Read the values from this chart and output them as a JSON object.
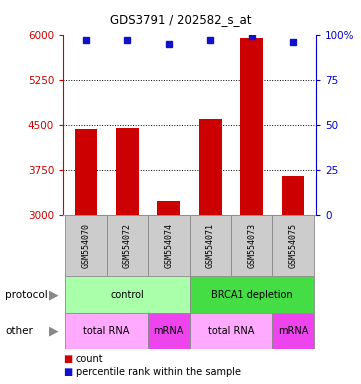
{
  "title": "GDS3791 / 202582_s_at",
  "samples": [
    "GSM554070",
    "GSM554072",
    "GSM554074",
    "GSM554071",
    "GSM554073",
    "GSM554075"
  ],
  "counts": [
    4430,
    4450,
    3230,
    4600,
    5950,
    3650
  ],
  "percentile_ranks": [
    97,
    97,
    95,
    97,
    99,
    96
  ],
  "ylim_left": [
    3000,
    6000
  ],
  "ylim_right": [
    0,
    100
  ],
  "yticks_left": [
    3000,
    3750,
    4500,
    5250,
    6000
  ],
  "yticks_right": [
    0,
    25,
    50,
    75,
    100
  ],
  "bar_color": "#cc0000",
  "dot_color": "#1111cc",
  "bar_bottom": 3000,
  "protocol_groups": [
    {
      "text": "control",
      "span": [
        0,
        3
      ],
      "color": "#aaffaa"
    },
    {
      "text": "BRCA1 depletion",
      "span": [
        3,
        6
      ],
      "color": "#44dd44"
    }
  ],
  "other_groups": [
    {
      "text": "total RNA",
      "span": [
        0,
        2
      ],
      "color": "#ffaaff"
    },
    {
      "text": "mRNA",
      "span": [
        2,
        3
      ],
      "color": "#ee44ee"
    },
    {
      "text": "total RNA",
      "span": [
        3,
        5
      ],
      "color": "#ffaaff"
    },
    {
      "text": "mRNA",
      "span": [
        5,
        6
      ],
      "color": "#ee44ee"
    }
  ],
  "sample_bg_color": "#cccccc",
  "legend_count_color": "#cc0000",
  "legend_dot_color": "#1111cc",
  "bg_color": "#ffffff",
  "left_axis_color": "#cc0000",
  "right_axis_color": "#0000cc"
}
